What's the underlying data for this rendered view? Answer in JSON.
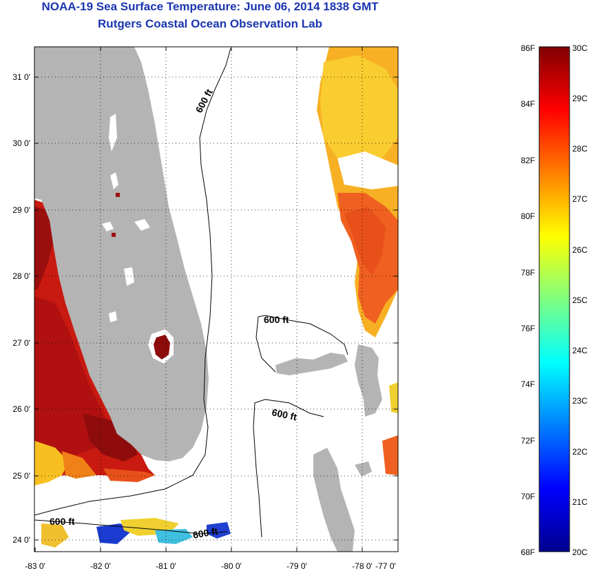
{
  "header": {
    "title": "NOAA-19 Sea Surface Temperature:  June 06, 2014 1838 GMT",
    "subtitle": "Rutgers Coastal Ocean Observation Lab"
  },
  "map": {
    "lat_ticks": [
      "31 0'",
      "30 0'",
      "29 0'",
      "28 0'",
      "27 0'",
      "26 0'",
      "25 0'",
      "24 0'"
    ],
    "lon_ticks": [
      "-83 0'",
      "-82 0'",
      "-81 0'",
      "-80 0'",
      "-79 0'",
      "-78 0'",
      "-77 0'"
    ],
    "contour_label": "600 ft",
    "land_color": "#b4b4b4"
  },
  "colorbar": {
    "f_labels": [
      "86F",
      "84F",
      "82F",
      "80F",
      "78F",
      "76F",
      "74F",
      "72F",
      "70F",
      "68F"
    ],
    "c_labels": [
      "30C",
      "29C",
      "28C",
      "27C",
      "26C",
      "25C",
      "24C",
      "23C",
      "22C",
      "21C",
      "20C"
    ]
  }
}
